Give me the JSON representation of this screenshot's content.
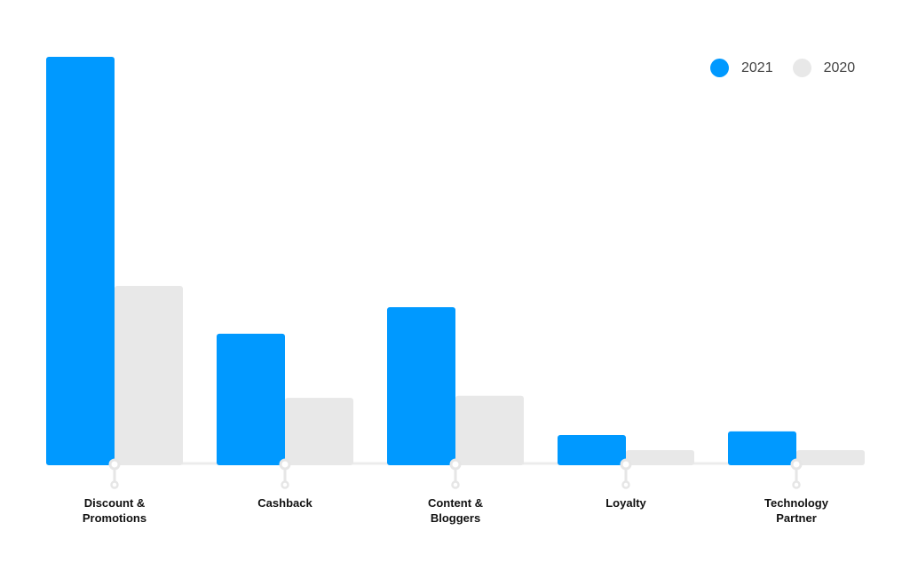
{
  "chart_data": {
    "type": "bar",
    "categories": [
      "Discount &\nPromotions",
      "Cashback",
      "Content &\nBloggers",
      "Loyalty",
      "Technology\nPartner"
    ],
    "series": [
      {
        "name": "2021",
        "color": "#0099ff",
        "values": [
          100,
          32.2,
          38.7,
          7.4,
          8.3
        ]
      },
      {
        "name": "2020",
        "color": "#e8e8e8",
        "values": [
          43.9,
          16.5,
          17.0,
          3.7,
          3.7
        ]
      }
    ],
    "ylim": [
      0,
      100
    ],
    "grid": false,
    "legend": "top-right",
    "title": "",
    "xlabel": "",
    "ylabel": ""
  }
}
